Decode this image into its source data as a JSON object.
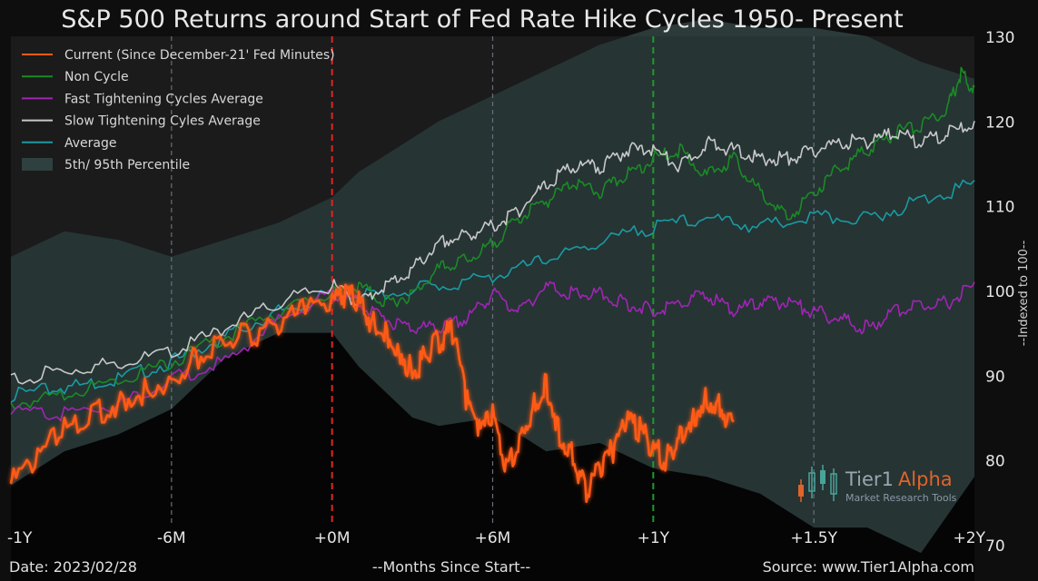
{
  "chart_data": {
    "type": "line",
    "title": "S&P 500 Returns around Start of Fed Rate Hike Cycles 1950- Present",
    "xlabel": "--Months Since Start--",
    "ylabel": "--Indexed to 100--",
    "x_ticks": [
      {
        "value": -12,
        "label": "-1Y"
      },
      {
        "value": -6,
        "label": "-6M"
      },
      {
        "value": 0,
        "label": "+0M"
      },
      {
        "value": 6,
        "label": "+6M"
      },
      {
        "value": 12,
        "label": "+1Y"
      },
      {
        "value": 18,
        "label": "+1.5Y"
      },
      {
        "value": 24,
        "label": "+2Y"
      }
    ],
    "y_ticks": [
      70,
      80,
      90,
      100,
      110,
      120,
      130
    ],
    "xlim": [
      -12,
      24
    ],
    "ylim": [
      70,
      130
    ],
    "grid": "vertical dashed lines at -6M, +6M, +1.5Y",
    "markers": [
      {
        "x": 0,
        "color": "#e02424",
        "style": "dashed"
      },
      {
        "x": 12,
        "color": "#1f9a2b",
        "style": "dashed"
      }
    ],
    "legend_position": "top-left",
    "series": [
      {
        "name": "Current (Since December-21' Fed Minutes)",
        "color": "#ff5a14",
        "x": [
          -12,
          -11,
          -10,
          -9,
          -8,
          -7,
          -6,
          -5,
          -4,
          -3,
          -2,
          -1,
          0,
          0.5,
          1,
          1.5,
          2,
          2.5,
          3,
          3.5,
          4,
          4.5,
          5,
          5.5,
          6,
          6.5,
          7,
          7.5,
          8,
          8.5,
          9,
          9.5,
          10,
          10.5,
          11,
          11.5,
          12,
          12.5,
          13,
          13.5,
          14,
          14.5,
          15
        ],
        "values": [
          78,
          81,
          84.5,
          86,
          87.5,
          89,
          90.5,
          93,
          95,
          95.5,
          96.5,
          98.5,
          99,
          100.5,
          99.5,
          97,
          95.5,
          94,
          91,
          93,
          95,
          96,
          88,
          84,
          86,
          80,
          83,
          87,
          90,
          84,
          81,
          77,
          80,
          82,
          85,
          84.5,
          82,
          81,
          84,
          86,
          88,
          87,
          84.5
        ]
      },
      {
        "name": "Non Cycle",
        "color": "#1b8a26",
        "x": [
          -12,
          -10,
          -8,
          -6,
          -4,
          -2,
          0,
          1,
          2,
          3,
          4,
          5,
          6,
          7,
          8,
          9,
          10,
          11,
          12,
          13,
          14,
          15,
          16,
          17,
          18,
          19,
          20,
          21,
          22,
          23,
          23.5,
          24
        ],
        "values": [
          87,
          88,
          90,
          92,
          95,
          98,
          100,
          101,
          99,
          100,
          103,
          104,
          106,
          109,
          111,
          113,
          112,
          114,
          116,
          117,
          114,
          116,
          112,
          109,
          112,
          115,
          117,
          119,
          120,
          122,
          126,
          124
        ]
      },
      {
        "name": "Fast Tightening Cycles Average",
        "color": "#a025b4",
        "x": [
          -12,
          -10,
          -8,
          -6,
          -4,
          -2,
          0,
          1,
          2,
          3,
          4,
          5,
          6,
          7,
          8,
          9,
          10,
          11,
          12,
          13,
          14,
          15,
          16,
          17,
          18,
          19,
          20,
          21,
          22,
          23,
          24
        ],
        "values": [
          86,
          86,
          87,
          90,
          92,
          97,
          100,
          99,
          97,
          96,
          96,
          97,
          100,
          98,
          101,
          100,
          100,
          99,
          98,
          99,
          100,
          98,
          99,
          99,
          98,
          97,
          96,
          98,
          99,
          99,
          101
        ]
      },
      {
        "name": "Slow Tightening Cyles Average",
        "color": "#c8c8c8",
        "x": [
          -12,
          -10,
          -8,
          -6,
          -4,
          -2,
          0,
          1,
          2,
          3,
          4,
          5,
          6,
          7,
          8,
          9,
          10,
          11,
          12,
          13,
          14,
          15,
          16,
          17,
          18,
          19,
          20,
          21,
          22,
          23,
          24
        ],
        "values": [
          90,
          91,
          92,
          93,
          96,
          99,
          101,
          99,
          101,
          103,
          106,
          107,
          108,
          110,
          113,
          115,
          115,
          117,
          117,
          115,
          118,
          117,
          116,
          116,
          117,
          118,
          118,
          119,
          118,
          119,
          120
        ]
      },
      {
        "name": "Average",
        "color": "#1a9aa2",
        "x": [
          -12,
          -10,
          -8,
          -6,
          -4,
          -2,
          0,
          2,
          4,
          6,
          8,
          10,
          12,
          14,
          16,
          18,
          20,
          22,
          24
        ],
        "values": [
          88,
          89,
          90,
          92,
          95,
          98,
          100,
          100,
          101,
          102,
          104,
          106,
          108,
          109,
          108,
          109,
          109,
          111,
          113
        ]
      }
    ],
    "band": {
      "name": "5th/ 95th Percentile",
      "color": "#3e5a5a",
      "x": [
        -12,
        -10,
        -8,
        -6,
        -4,
        -2,
        0,
        1,
        2,
        3,
        4,
        6,
        8,
        10,
        12,
        14,
        16,
        18,
        20,
        22,
        24
      ],
      "upper": [
        104,
        107,
        106,
        104,
        106,
        108,
        111,
        114,
        116,
        118,
        120,
        123,
        126,
        129,
        131,
        132,
        131,
        131,
        130,
        127,
        125
      ],
      "lower": [
        77,
        81,
        83,
        86,
        92,
        95,
        95,
        91,
        88,
        85,
        84,
        85,
        81,
        82,
        79,
        78,
        76,
        72,
        72,
        69,
        78
      ]
    }
  },
  "footer": {
    "date": "Date: 2023/02/28",
    "source": "Source: www.Tier1Alpha.com"
  },
  "logo": {
    "brand_part1": "Tier1",
    "brand_part2": "Alpha",
    "tagline": "Market Research Tools"
  },
  "colors": {
    "background": "#0e0e0e",
    "grid": "#6a6e7a",
    "text": "#e6e6e6"
  }
}
